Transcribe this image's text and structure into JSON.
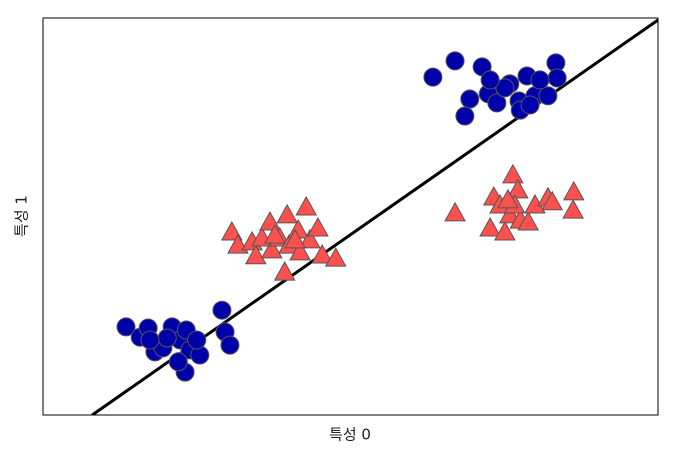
{
  "chart_data": {
    "type": "scatter",
    "xlabel": "특성 0",
    "ylabel": "특성 1",
    "xlim": [
      0,
      100
    ],
    "ylim": [
      0,
      100
    ],
    "series": [
      {
        "marker": "circle",
        "color": "#0000a8",
        "x": [
          63.4,
          67.0,
          71.4,
          69.4,
          68.6,
          72.4,
          73.8,
          75.9,
          77.4,
          78.7,
          80.0,
          82.1,
          83.4,
          83.6,
          80.8,
          77.6,
          75.1,
          72.7,
          79.2,
          13.5,
          15.8,
          17.1,
          18.2,
          19.5,
          21.0,
          22.3,
          23.3,
          23.9,
          23.1,
          22.0,
          25.5,
          25.0,
          29.1,
          29.6,
          30.4,
          20.2,
          17.4
        ],
        "y": [
          85.1,
          89.2,
          87.7,
          79.6,
          75.3,
          80.9,
          78.6,
          83.4,
          79.1,
          85.4,
          80.4,
          80.4,
          88.7,
          84.9,
          84.4,
          76.8,
          82.4,
          84.4,
          78.1,
          22.2,
          19.6,
          21.9,
          15.9,
          16.9,
          22.2,
          18.9,
          21.4,
          16.4,
          10.8,
          13.4,
          15.1,
          18.9,
          26.4,
          20.9,
          17.6,
          19.4,
          18.9
        ]
      },
      {
        "marker": "triangle",
        "color": "#ff5050",
        "x": [
          30.7,
          31.7,
          34.0,
          34.6,
          35.6,
          36.9,
          37.2,
          38.5,
          39.7,
          40.0,
          39.3,
          41.5,
          41.8,
          42.8,
          43.4,
          44.7,
          45.4,
          47.6,
          41.0,
          37.7,
          67.0,
          72.7,
          73.3,
          74.3,
          75.1,
          75.9,
          76.4,
          77.2,
          77.6,
          78.9,
          80.0,
          82.1,
          82.8,
          86.3,
          86.2,
          76.7,
          75.6
        ],
        "y": [
          46.1,
          42.8,
          43.6,
          40.1,
          44.6,
          48.6,
          41.6,
          44.6,
          50.4,
          42.8,
          36.0,
          46.6,
          41.1,
          52.4,
          44.1,
          47.1,
          40.3,
          39.5,
          44.1,
          45.3,
          50.9,
          47.1,
          54.9,
          52.9,
          46.1,
          50.4,
          60.5,
          56.7,
          49.1,
          48.6,
          52.9,
          54.7,
          53.7,
          56.2,
          51.6,
          52.9,
          54.2
        ]
      }
    ],
    "lines": [
      {
        "color": "#000000",
        "x": [
          8.0,
          100
        ],
        "y": [
          0,
          99.5
        ]
      }
    ]
  }
}
